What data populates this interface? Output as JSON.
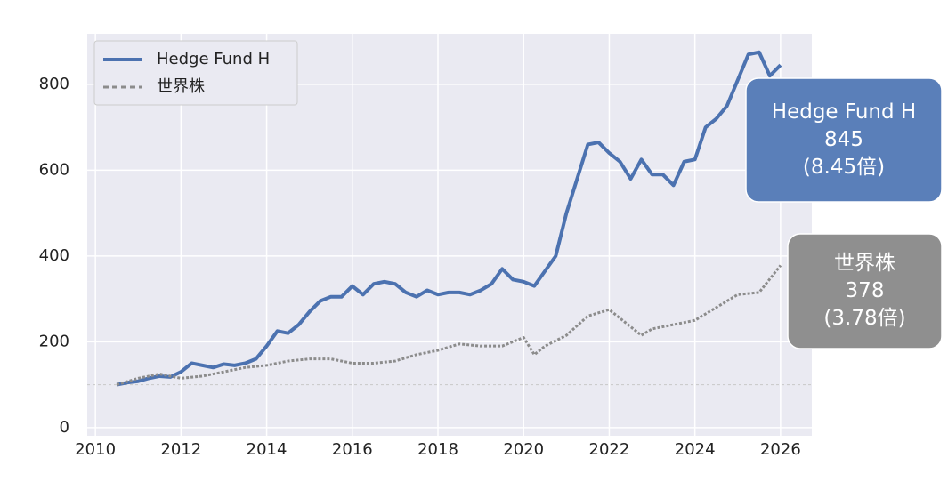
{
  "chart_data": {
    "type": "line",
    "xlim": [
      2009.81,
      2026.73
    ],
    "xticks": [
      2010,
      2012,
      2014,
      2016,
      2018,
      2020,
      2022,
      2024,
      2026
    ],
    "ylim": [
      -19,
      918
    ],
    "yticks": [
      0,
      200,
      400,
      600,
      800
    ],
    "grid": true,
    "legend": "upper left",
    "reference_line": 100,
    "series": [
      {
        "name": "Hedge Fund H",
        "color": "#4c72b0",
        "style": "solid",
        "x": [
          2010.5,
          2010.75,
          2011,
          2011.25,
          2011.5,
          2011.75,
          2012,
          2012.25,
          2012.5,
          2012.75,
          2013,
          2013.25,
          2013.5,
          2013.75,
          2014,
          2014.25,
          2014.5,
          2014.75,
          2015,
          2015.25,
          2015.5,
          2015.75,
          2016,
          2016.25,
          2016.5,
          2016.75,
          2017,
          2017.25,
          2017.5,
          2017.75,
          2018,
          2018.25,
          2018.5,
          2018.75,
          2019,
          2019.25,
          2019.5,
          2019.75,
          2020,
          2020.25,
          2020.5,
          2020.75,
          2021,
          2021.25,
          2021.5,
          2021.75,
          2022,
          2022.25,
          2022.5,
          2022.75,
          2023,
          2023.25,
          2023.5,
          2023.75,
          2024,
          2024.25,
          2024.5,
          2024.75,
          2025,
          2025.25,
          2025.5,
          2025.75,
          2026
        ],
        "values": [
          100,
          105,
          108,
          115,
          120,
          118,
          130,
          150,
          145,
          140,
          148,
          145,
          150,
          160,
          190,
          225,
          220,
          240,
          270,
          295,
          305,
          305,
          330,
          310,
          335,
          340,
          335,
          315,
          305,
          320,
          310,
          315,
          315,
          310,
          320,
          335,
          370,
          345,
          340,
          330,
          365,
          400,
          500,
          580,
          660,
          665,
          640,
          620,
          580,
          625,
          590,
          590,
          565,
          620,
          625,
          700,
          720,
          750,
          810,
          870,
          875,
          820,
          845
        ]
      },
      {
        "name": "世界株",
        "color": "#8c8c8c",
        "style": "dotted",
        "x": [
          2010.5,
          2011,
          2011.5,
          2012,
          2012.5,
          2013,
          2013.5,
          2014,
          2014.5,
          2015,
          2015.5,
          2016,
          2016.5,
          2017,
          2017.5,
          2018,
          2018.5,
          2019,
          2019.5,
          2020,
          2020.25,
          2020.5,
          2021,
          2021.5,
          2022,
          2022.5,
          2022.75,
          2023,
          2023.5,
          2024,
          2024.5,
          2025,
          2025.5,
          2026
        ],
        "values": [
          100,
          115,
          125,
          115,
          120,
          130,
          140,
          145,
          155,
          160,
          160,
          150,
          150,
          155,
          170,
          180,
          195,
          190,
          190,
          210,
          170,
          190,
          215,
          260,
          275,
          235,
          215,
          230,
          240,
          250,
          280,
          310,
          315,
          378
        ]
      }
    ],
    "annotations": [
      {
        "lines": [
          "Hedge Fund H",
          "845",
          "(8.45倍)"
        ],
        "color": "#5a7fb9"
      },
      {
        "lines": [
          "世界株",
          "378",
          "(3.78倍)"
        ],
        "color": "#8f8f8f"
      }
    ]
  }
}
